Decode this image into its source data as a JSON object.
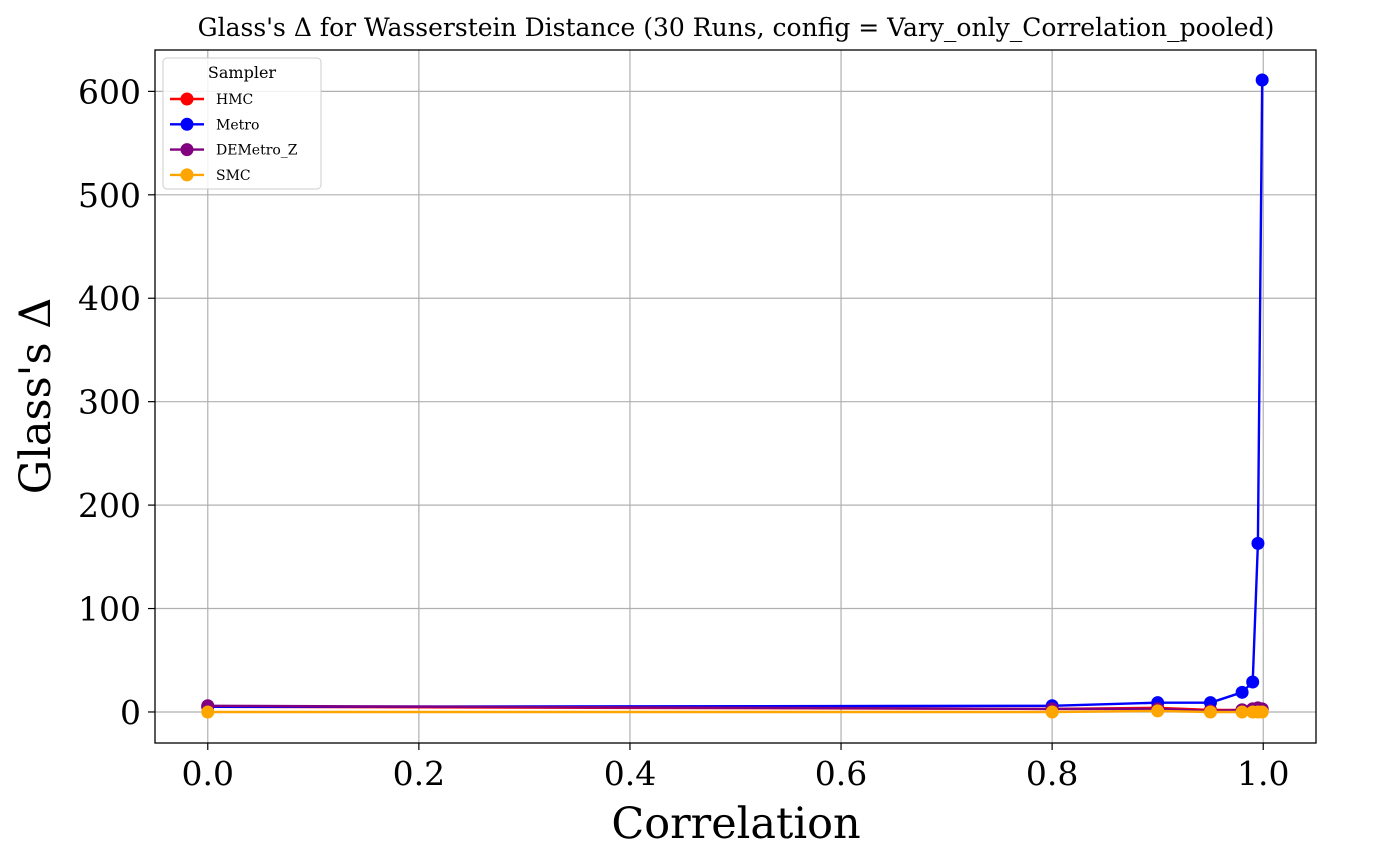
{
  "chart_data": {
    "type": "line",
    "title": "Glass's Δ for Wasserstein Distance (30 Runs, config = Vary_only_Correlation_pooled)",
    "xlabel": "Correlation",
    "ylabel": "Glass's Δ",
    "xlim": [
      -0.05,
      1.05
    ],
    "ylim": [
      -30,
      640
    ],
    "xticks": [
      0.0,
      0.2,
      0.4,
      0.6,
      0.8,
      1.0
    ],
    "xtick_labels": [
      "0.0",
      "0.2",
      "0.4",
      "0.6",
      "0.8",
      "1.0"
    ],
    "yticks": [
      0,
      100,
      200,
      300,
      400,
      500,
      600
    ],
    "ytick_labels": [
      "0",
      "100",
      "200",
      "300",
      "400",
      "500",
      "600"
    ],
    "grid": true,
    "legend": {
      "title": "Sampler",
      "placement": "top-left"
    },
    "x": [
      0.0,
      0.8,
      0.9,
      0.95,
      0.98,
      0.99,
      0.995,
      0.999
    ],
    "series": [
      {
        "name": "HMC",
        "color": "#ff0000",
        "values": [
          5,
          3,
          4,
          2,
          2,
          3,
          3,
          2
        ]
      },
      {
        "name": "Metro",
        "color": "#0000ff",
        "values": [
          5,
          6,
          9,
          9,
          19,
          29,
          163,
          611
        ]
      },
      {
        "name": "DEMetro_Z",
        "color": "#800080",
        "values": [
          6,
          3,
          3,
          1,
          2,
          3,
          4,
          3
        ]
      },
      {
        "name": "SMC",
        "color": "#ffa500",
        "values": [
          0,
          0,
          1,
          0,
          0,
          0,
          0,
          0
        ]
      }
    ]
  }
}
